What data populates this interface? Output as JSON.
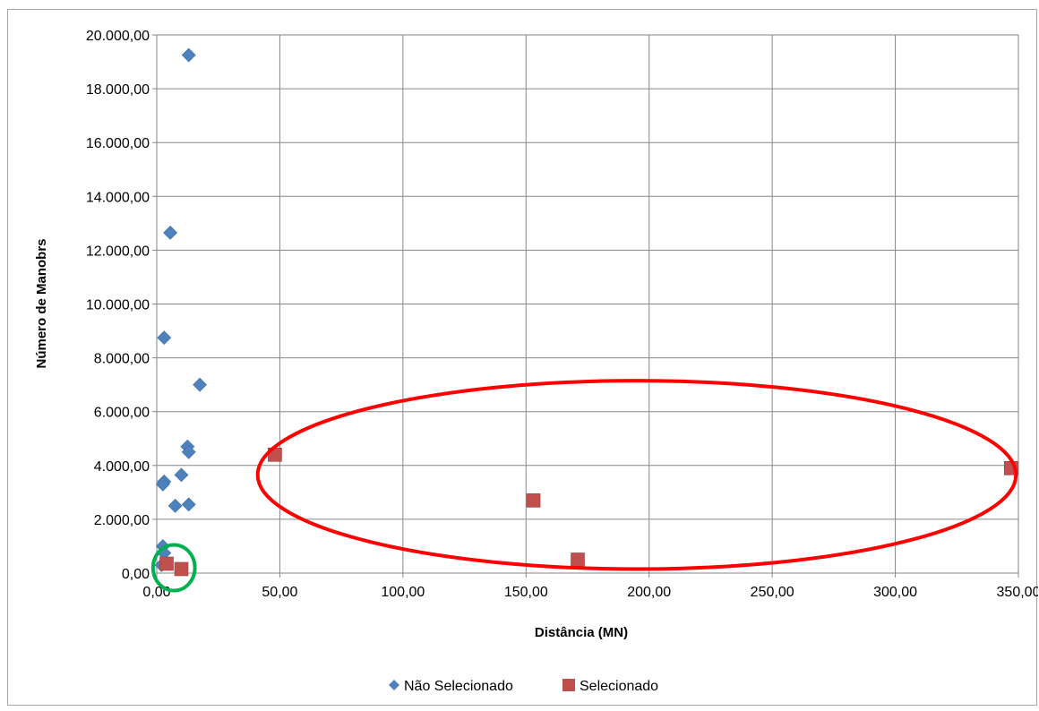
{
  "chart_data": {
    "type": "scatter",
    "title": "",
    "xlabel": "Distância  (MN)",
    "ylabel": "Número de Manobrs",
    "xlim": [
      0,
      350
    ],
    "ylim": [
      0,
      20000
    ],
    "x_ticks": [
      "0,00",
      "50,00",
      "100,00",
      "150,00",
      "200,00",
      "250,00",
      "300,00",
      "350,00"
    ],
    "y_ticks": [
      "0,00",
      "2.000,00",
      "4.000,00",
      "6.000,00",
      "8.000,00",
      "10.000,00",
      "12.000,00",
      "14.000,00",
      "16.000,00",
      "18.000,00",
      "20.000,00"
    ],
    "grid": true,
    "legend_position": "bottom",
    "series": [
      {
        "name": "Não Selecionado",
        "marker": "diamond",
        "color": "#4f81bd",
        "points": [
          {
            "x": 13,
            "y": 19250
          },
          {
            "x": 5.5,
            "y": 12650
          },
          {
            "x": 3,
            "y": 8750
          },
          {
            "x": 17.5,
            "y": 7000
          },
          {
            "x": 12.5,
            "y": 4700
          },
          {
            "x": 13,
            "y": 4500
          },
          {
            "x": 10,
            "y": 3650
          },
          {
            "x": 3,
            "y": 3400
          },
          {
            "x": 2.5,
            "y": 3300
          },
          {
            "x": 7.5,
            "y": 2500
          },
          {
            "x": 13,
            "y": 2550
          },
          {
            "x": 2.5,
            "y": 1000
          },
          {
            "x": 3,
            "y": 750
          },
          {
            "x": 2,
            "y": 300
          }
        ]
      },
      {
        "name": "Selecionado",
        "marker": "square",
        "color": "#c0504d",
        "points": [
          {
            "x": 48,
            "y": 4400
          },
          {
            "x": 153,
            "y": 2700
          },
          {
            "x": 171,
            "y": 500
          },
          {
            "x": 347,
            "y": 3900
          },
          {
            "x": 4,
            "y": 350
          },
          {
            "x": 10,
            "y": 150
          }
        ]
      }
    ],
    "annotations": [
      {
        "shape": "ellipse",
        "color": "#ff0000",
        "cx": 195,
        "cy": 3650,
        "rx": 154,
        "ry": 3500
      },
      {
        "shape": "ellipse",
        "color": "#00b050",
        "cx": 7,
        "cy": 200,
        "rx": 8.5,
        "ry": 850
      }
    ]
  }
}
